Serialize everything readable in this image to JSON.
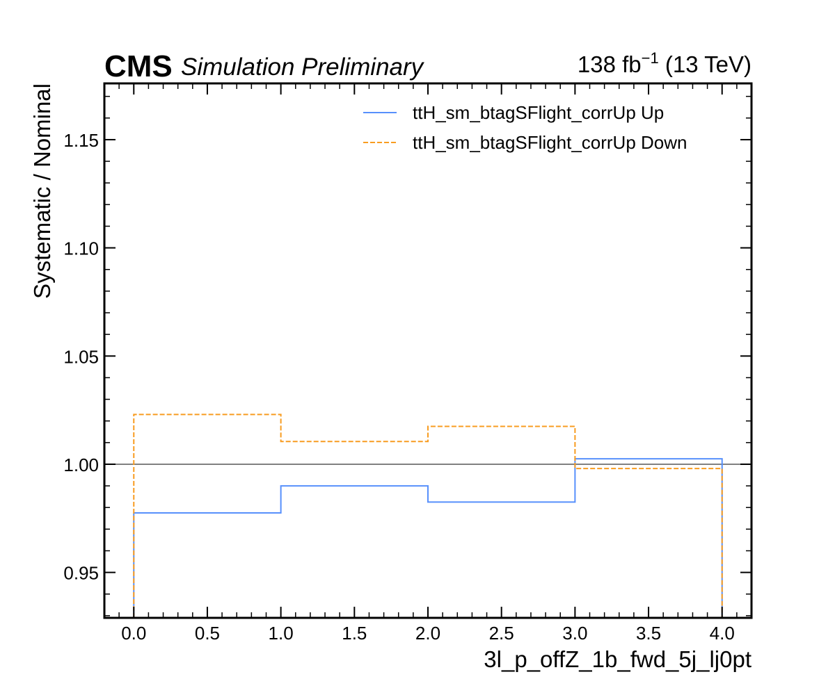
{
  "header": {
    "experiment": "CMS",
    "status": "Simulation Preliminary",
    "lumi_value": "138 fb",
    "lumi_exp": "−1",
    "energy": " (13 TeV)"
  },
  "chart_data": {
    "type": "line",
    "drawstyle": "step",
    "xlabel": "3l_p_offZ_1b_fwd_5j_lj0pt",
    "ylabel": "Systematic / Nominal",
    "xlim": [
      -0.2,
      4.2
    ],
    "ylim": [
      0.929,
      1.176
    ],
    "x_ticks": [
      0.0,
      0.5,
      1.0,
      1.5,
      2.0,
      2.5,
      3.0,
      3.5,
      4.0
    ],
    "x_tick_labels": [
      "0.0",
      "0.5",
      "1.0",
      "1.5",
      "2.0",
      "2.5",
      "3.0",
      "3.5",
      "4.0"
    ],
    "y_ticks": [
      0.95,
      1.0,
      1.05,
      1.1,
      1.15
    ],
    "y_tick_labels": [
      "0.95",
      "1.00",
      "1.05",
      "1.10",
      "1.15"
    ],
    "bin_edges": [
      0,
      1,
      2,
      3,
      4
    ],
    "reference_line": 1.0,
    "legend_position": "top-right",
    "series": [
      {
        "name": "ttH_sm_btagSFlight_corrUp Up",
        "color": "#5790fc",
        "dash": "solid",
        "values": [
          0.9775,
          0.99,
          0.9825,
          1.0025
        ]
      },
      {
        "name": "ttH_sm_btagSFlight_corrUp Down",
        "color": "#f89c20",
        "dash": "dashed",
        "values": [
          1.023,
          1.0105,
          1.0175,
          0.998
        ]
      }
    ],
    "reference_color": "#808080"
  }
}
